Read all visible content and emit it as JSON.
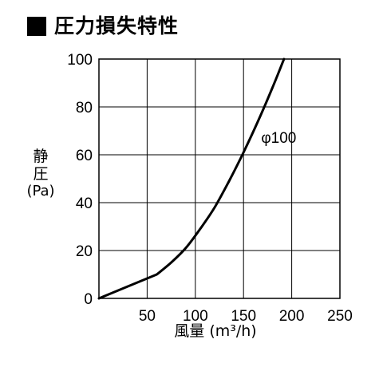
{
  "title": "圧力損失特性",
  "ylabel": {
    "chars": [
      "静",
      "圧"
    ],
    "unit": "(Pa)"
  },
  "xlabel": "風量 (m³/h)",
  "colors": {
    "line": "#000000",
    "grid": "#000000",
    "background": "#ffffff"
  },
  "chart_data": {
    "type": "line",
    "title": "圧力損失特性",
    "xlabel": "風量 (m³/h)",
    "ylabel": "静圧 (Pa)",
    "xlim": [
      0,
      250
    ],
    "ylim": [
      0,
      100
    ],
    "x_ticks": [
      0,
      50,
      100,
      150,
      200,
      250
    ],
    "x_tick_labels": [
      "",
      "50",
      "100",
      "150",
      "200",
      "250"
    ],
    "y_ticks": [
      0,
      20,
      40,
      60,
      80,
      100
    ],
    "y_tick_labels": [
      "0",
      "20",
      "40",
      "60",
      "80",
      "100"
    ],
    "grid": true,
    "series": [
      {
        "name": "φ100",
        "x": [
          0,
          30,
          60,
          75,
          90,
          105,
          120,
          135,
          150,
          165,
          180,
          192
        ],
        "y": [
          0,
          5,
          10,
          15,
          21,
          29,
          38,
          49,
          61,
          74,
          88,
          100
        ]
      }
    ],
    "annotations": [
      {
        "text": "φ100",
        "x": 165,
        "y": 67
      }
    ]
  }
}
